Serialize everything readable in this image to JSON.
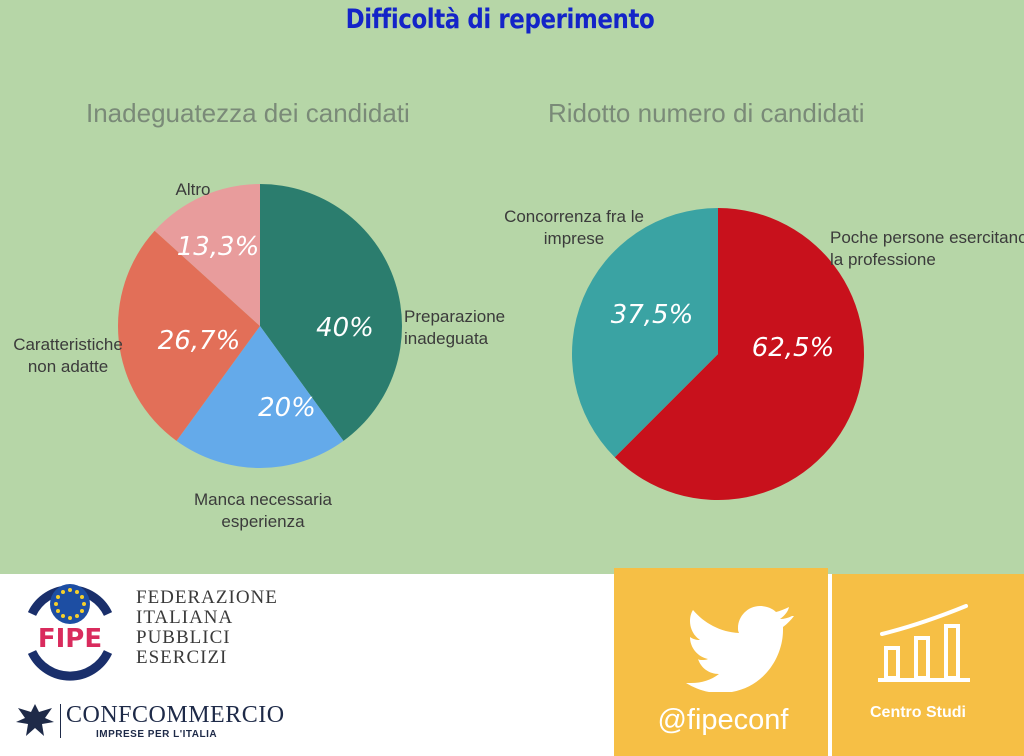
{
  "title": "Difficoltà di reperimento",
  "chart_data": [
    {
      "type": "pie",
      "title": "Inadeguatezza dei candidati",
      "slices": [
        {
          "label": "Preparazione inadeguata",
          "label_lines": [
            "Preparazione",
            "inadeguata"
          ],
          "value": 40,
          "value_text": "40%",
          "color": "#2b7d6e"
        },
        {
          "label": "Manca necessaria esperienza",
          "label_lines": [
            "Manca necessaria",
            "esperienza"
          ],
          "value": 20,
          "value_text": "20%",
          "color": "#64aaea"
        },
        {
          "label": "Caratteristiche non adatte",
          "label_lines": [
            "Caratteristiche",
            "non adatte"
          ],
          "value": 26.7,
          "value_text": "26,7%",
          "color": "#e26f58"
        },
        {
          "label": "Altro",
          "label_lines": [
            "Altro"
          ],
          "value": 13.3,
          "value_text": "13,3%",
          "color": "#e89c9c"
        }
      ]
    },
    {
      "type": "pie",
      "title": "Ridotto numero di candidati",
      "slices": [
        {
          "label": "Poche persone esercitano la professione",
          "label_lines": [
            "Poche persone esercitano",
            "la professione"
          ],
          "value": 62.5,
          "value_text": "62,5%",
          "color": "#c8111c"
        },
        {
          "label": "Concorrenza fra le imprese",
          "label_lines": [
            "Concorrenza fra le",
            "imprese"
          ],
          "value": 37.5,
          "value_text": "37,5%",
          "color": "#3aa3a3"
        }
      ]
    }
  ],
  "footer": {
    "federation_lines": [
      "FEDERAZIONE",
      "ITALIANA",
      "PUBBLICI",
      "ESERCIZI"
    ],
    "fipe_logo_text": "FIPE",
    "confcommercio_name": "CONFCOMMERCIO",
    "confcommercio_tagline": "IMPRESE PER L'ITALIA",
    "twitter_handle": "@fipeconf",
    "centro_studi": "Centro Studi",
    "accent_color": "#f6bf45"
  }
}
